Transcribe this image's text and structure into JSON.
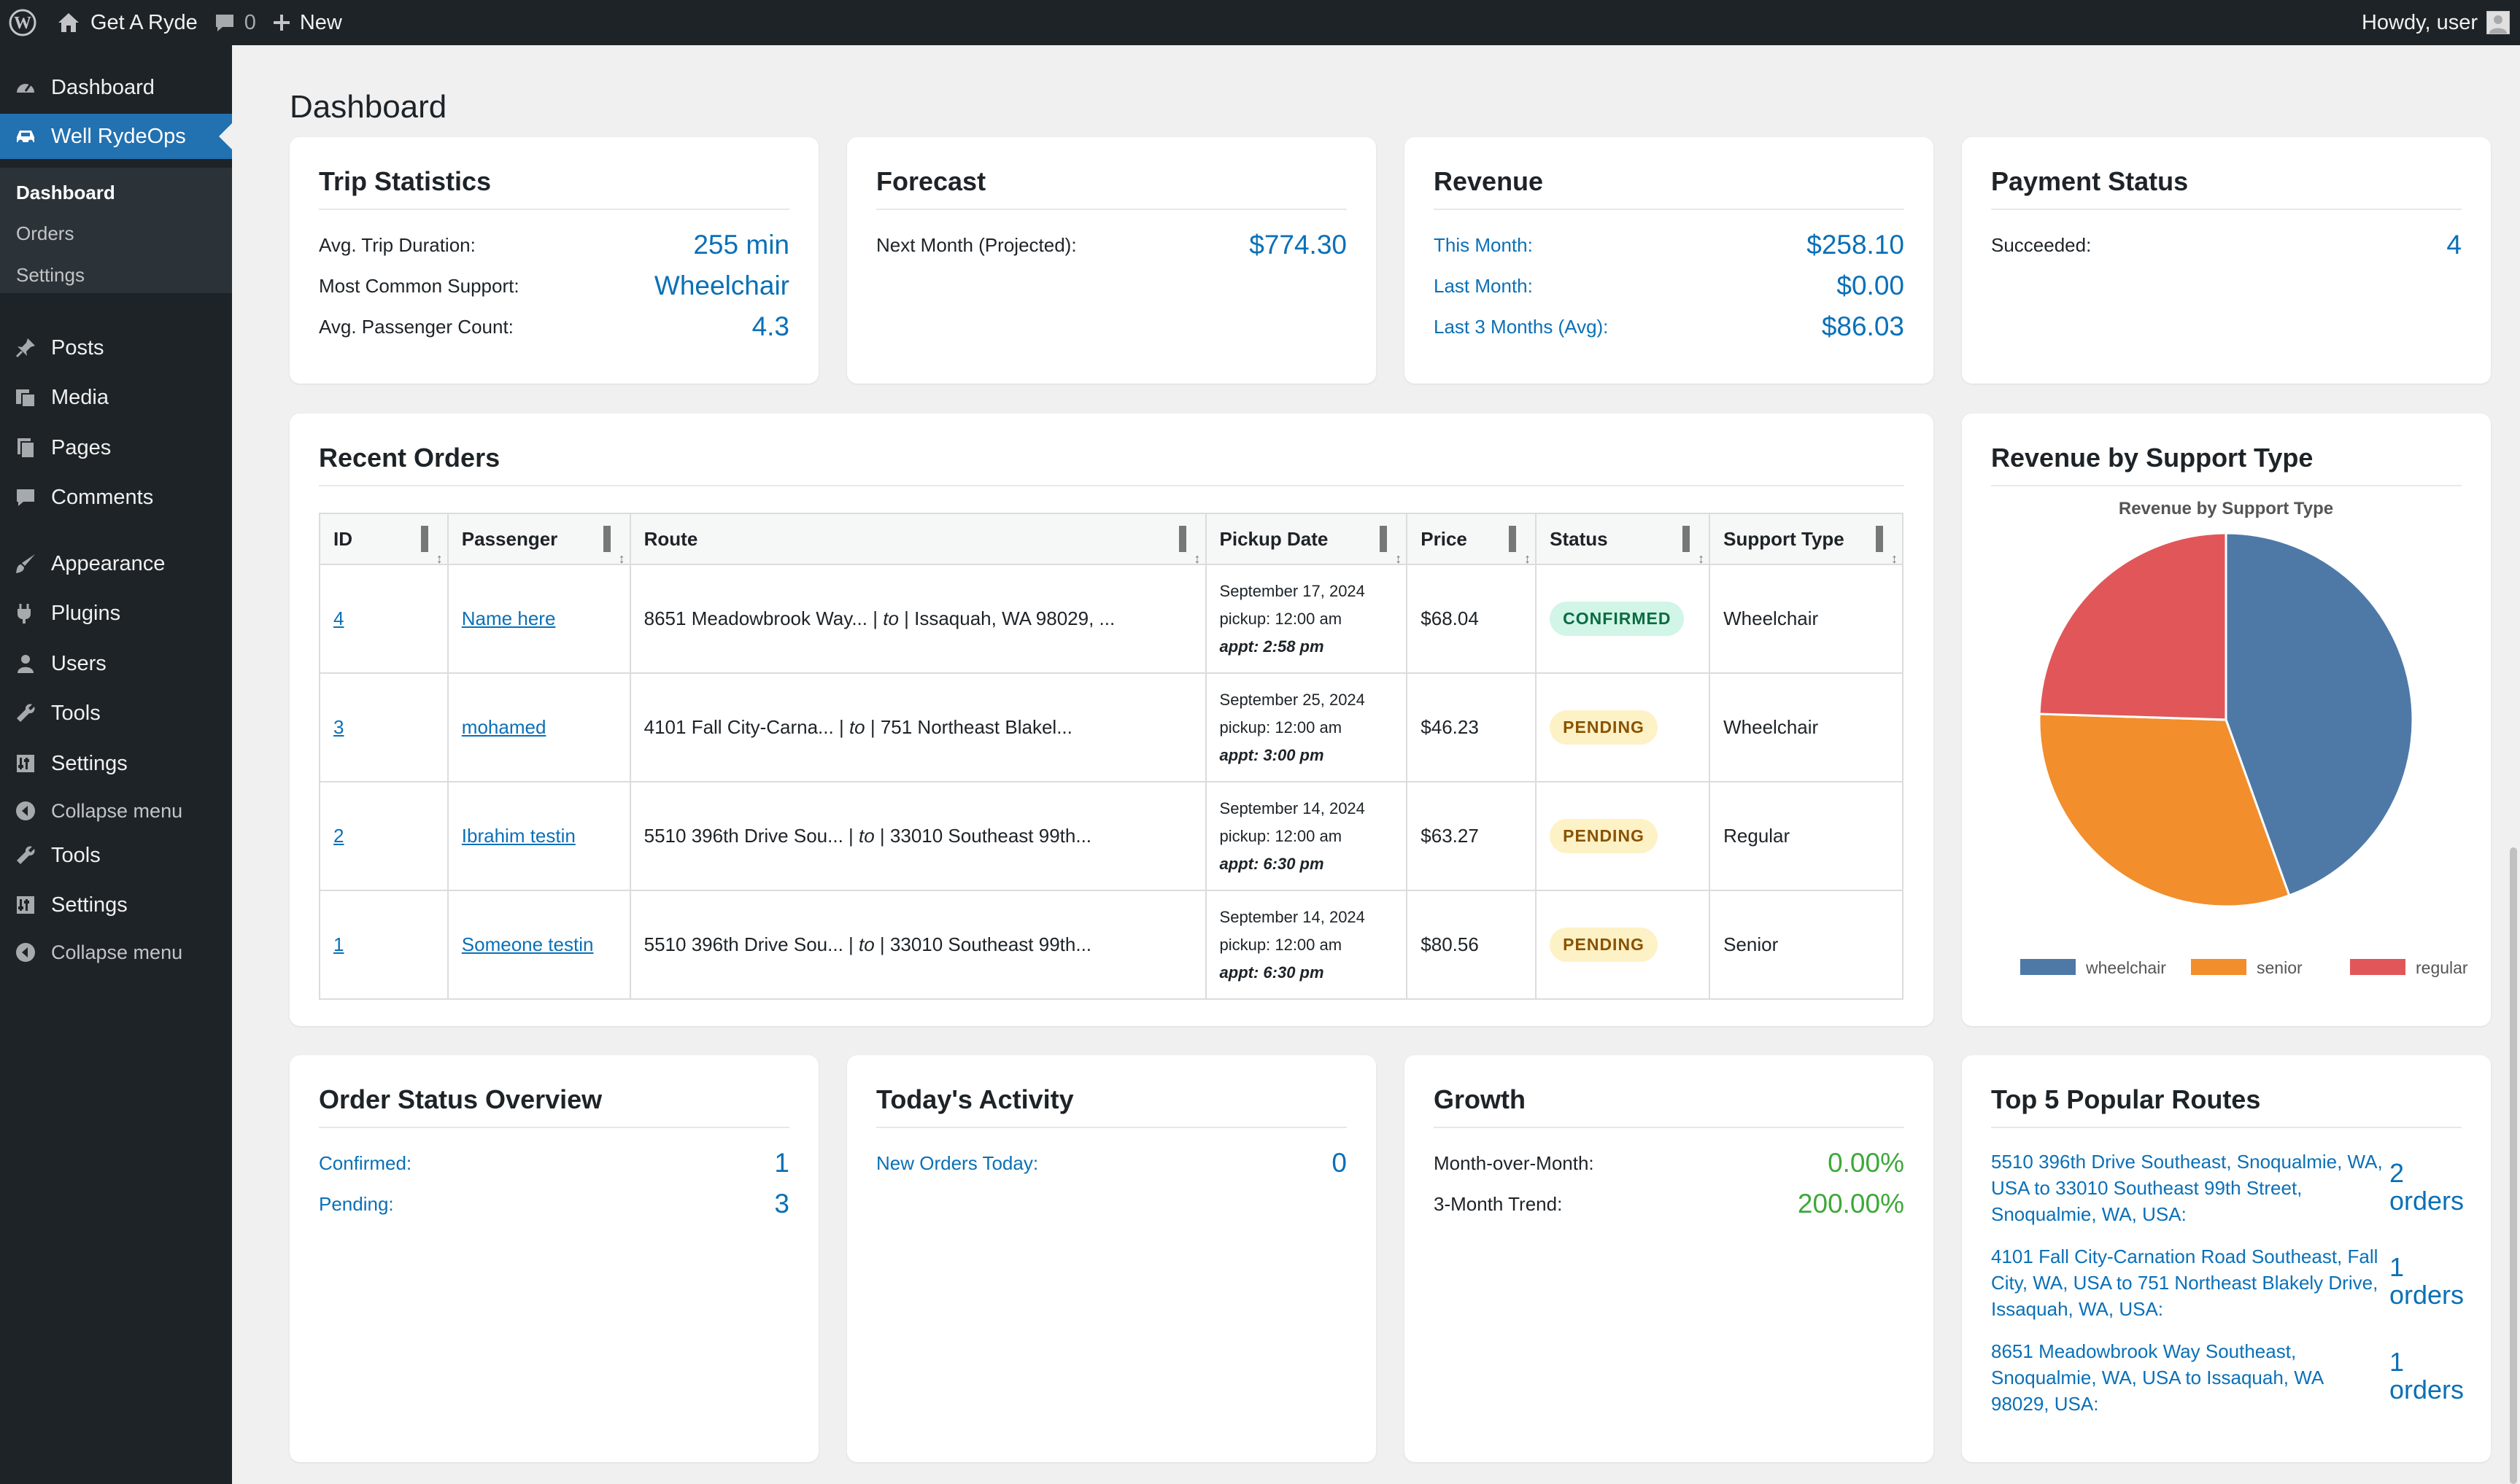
{
  "admin_bar": {
    "site_name": "Get A Ryde",
    "comments_count": "0",
    "new_label": "New",
    "greeting": "Howdy, user"
  },
  "sidebar": {
    "items": [
      {
        "label": "Dashboard",
        "icon": "dashboard-icon"
      },
      {
        "label": "Well RydeOps",
        "icon": "car-icon"
      },
      {
        "label": "Posts",
        "icon": "pin-icon"
      },
      {
        "label": "Media",
        "icon": "media-icon"
      },
      {
        "label": "Pages",
        "icon": "page-icon"
      },
      {
        "label": "Comments",
        "icon": "comment-icon"
      },
      {
        "label": "Appearance",
        "icon": "brush-icon"
      },
      {
        "label": "Plugins",
        "icon": "plug-icon"
      },
      {
        "label": "Users",
        "icon": "user-icon"
      },
      {
        "label": "Tools",
        "icon": "wrench-icon"
      },
      {
        "label": "Settings",
        "icon": "settings-icon"
      },
      {
        "label": "Collapse menu",
        "icon": "collapse-icon"
      },
      {
        "label": "Tools",
        "icon": "wrench-icon"
      },
      {
        "label": "Settings",
        "icon": "settings-icon"
      },
      {
        "label": "Collapse menu",
        "icon": "collapse-icon"
      }
    ],
    "submenu": [
      "Dashboard",
      "Orders",
      "Settings"
    ]
  },
  "page_title": "Dashboard",
  "trip_stats": {
    "title": "Trip Statistics",
    "rows": [
      {
        "label": "Avg. Trip Duration:",
        "value": "255 min"
      },
      {
        "label": "Most Common Support:",
        "value": "Wheelchair"
      },
      {
        "label": "Avg. Passenger Count:",
        "value": "4.3"
      }
    ]
  },
  "forecast": {
    "title": "Forecast",
    "rows": [
      {
        "label": "Next Month (Projected):",
        "value": "$774.30"
      }
    ]
  },
  "revenue": {
    "title": "Revenue",
    "rows": [
      {
        "label": "This Month:",
        "value": "$258.10"
      },
      {
        "label": "Last Month:",
        "value": "$0.00"
      },
      {
        "label": "Last 3 Months (Avg):",
        "value": "$86.03"
      }
    ]
  },
  "payment_status": {
    "title": "Payment Status",
    "rows": [
      {
        "label": "Succeeded:",
        "value": "4"
      }
    ]
  },
  "recent_orders": {
    "title": "Recent Orders",
    "columns": [
      "ID",
      "Passenger",
      "Route",
      "Pickup Date",
      "Price",
      "Status",
      "Support Type"
    ],
    "rows": [
      {
        "id": "4",
        "passenger": "Name here",
        "route_from": "8651 Meadowbrook Way...",
        "to": "to",
        "route_to": "Issaquah, WA 98029, ...",
        "date": "September 17, 2024",
        "pickup": "pickup: 12:00 am",
        "appt": "appt: 2:58 pm",
        "price": "$68.04",
        "status": "CONFIRMED",
        "support": "Wheelchair"
      },
      {
        "id": "3",
        "passenger": "mohamed",
        "route_from": "4101 Fall City-Carna...",
        "to": "to",
        "route_to": "751 Northeast Blakel...",
        "date": "September 25, 2024",
        "pickup": "pickup: 12:00 am",
        "appt": "appt: 3:00 pm",
        "price": "$46.23",
        "status": "PENDING",
        "support": "Wheelchair"
      },
      {
        "id": "2",
        "passenger": "Ibrahim testin",
        "route_from": "5510 396th Drive Sou...",
        "to": "to",
        "route_to": "33010 Southeast 99th...",
        "date": "September 14, 2024",
        "pickup": "pickup: 12:00 am",
        "appt": "appt: 6:30 pm",
        "price": "$63.27",
        "status": "PENDING",
        "support": "Regular"
      },
      {
        "id": "1",
        "passenger": "Someone testin",
        "route_from": "5510 396th Drive Sou...",
        "to": "to",
        "route_to": "33010 Southeast 99th...",
        "date": "September 14, 2024",
        "pickup": "pickup: 12:00 am",
        "appt": "appt: 6:30 pm",
        "price": "$80.56",
        "status": "PENDING",
        "support": "Senior"
      }
    ]
  },
  "revenue_by_support": {
    "title": "Revenue by Support Type"
  },
  "chart_data": {
    "type": "pie",
    "title": "Revenue by Support Type",
    "categories": [
      "wheelchair",
      "senior",
      "regular"
    ],
    "values": [
      44.5,
      31.0,
      24.5
    ],
    "colors": [
      "#4e79a7",
      "#f28e2b",
      "#e15759"
    ],
    "legend": "bottom"
  },
  "order_status": {
    "title": "Order Status Overview",
    "rows": [
      {
        "label": "Confirmed:",
        "value": "1"
      },
      {
        "label": "Pending:",
        "value": "3"
      }
    ]
  },
  "today_activity": {
    "title": "Today's Activity",
    "rows": [
      {
        "label": "New Orders Today:",
        "value": "0"
      }
    ]
  },
  "growth": {
    "title": "Growth",
    "rows": [
      {
        "label": "Month-over-Month:",
        "value": "0.00%"
      },
      {
        "label": "3-Month Trend:",
        "value": "200.00%"
      }
    ]
  },
  "top_routes": {
    "title": "Top 5 Popular Routes",
    "items": [
      {
        "route": "5510 396th Drive Southeast, Snoqualmie, WA, USA to 33010 Southeast 99th Street, Snoqualmie, WA, USA:",
        "count": "2",
        "unit": "orders"
      },
      {
        "route": "4101 Fall City-Carnation Road Southeast, Fall City, WA, USA to 751 Northeast Blakely Drive, Issaquah, WA, USA:",
        "count": "1",
        "unit": "orders"
      },
      {
        "route": "8651 Meadowbrook Way Southeast, Snoqualmie, WA, USA to Issaquah, WA 98029, USA:",
        "count": "1",
        "unit": "orders"
      }
    ]
  }
}
